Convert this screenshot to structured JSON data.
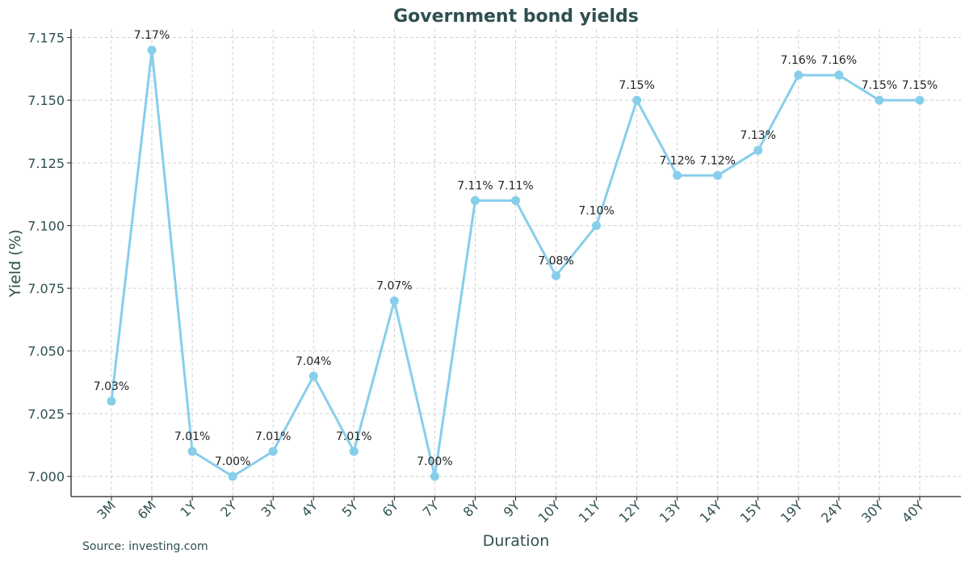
{
  "chart_data": {
    "type": "line",
    "title": "Government bond yields",
    "xlabel": "Duration",
    "ylabel": "Yield (%)",
    "categories": [
      "3M",
      "6M",
      "1Y",
      "2Y",
      "3Y",
      "4Y",
      "5Y",
      "6Y",
      "7Y",
      "8Y",
      "9Y",
      "10Y",
      "11Y",
      "12Y",
      "13Y",
      "14Y",
      "15Y",
      "19Y",
      "24Y",
      "30Y",
      "40Y"
    ],
    "values": [
      7.03,
      7.17,
      7.01,
      7.0,
      7.01,
      7.04,
      7.01,
      7.07,
      7.0,
      7.11,
      7.11,
      7.08,
      7.1,
      7.15,
      7.12,
      7.12,
      7.13,
      7.16,
      7.16,
      7.15,
      7.15
    ],
    "data_labels": [
      "7.03%",
      "7.17%",
      "7.01%",
      "7.00%",
      "7.01%",
      "7.04%",
      "7.01%",
      "7.07%",
      "7.00%",
      "7.11%",
      "7.11%",
      "7.08%",
      "7.10%",
      "7.15%",
      "7.12%",
      "7.12%",
      "7.13%",
      "7.16%",
      "7.16%",
      "7.15%",
      "7.15%"
    ],
    "yticks": [
      "7.000",
      "7.025",
      "7.050",
      "7.075",
      "7.100",
      "7.125",
      "7.150",
      "7.175"
    ],
    "ylim": [
      6.992,
      7.178
    ],
    "grid": true,
    "line_color": "#87CEEB",
    "text_color": "#2F4F4F"
  },
  "footer": {
    "source": "Source: investing.com"
  }
}
